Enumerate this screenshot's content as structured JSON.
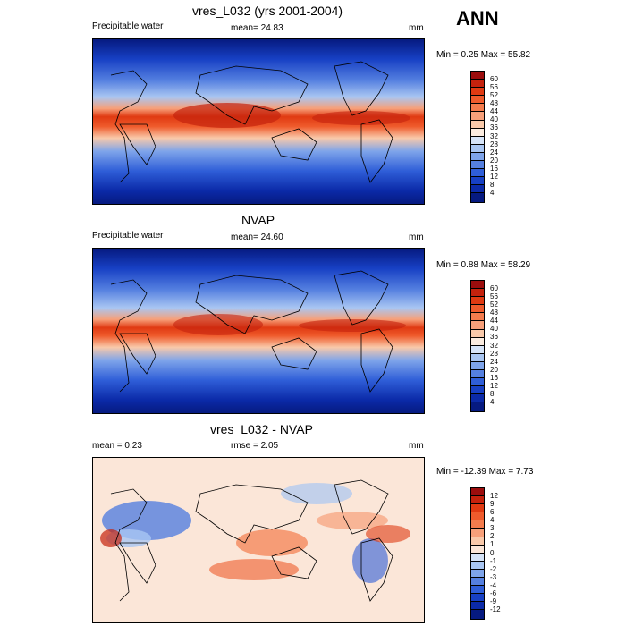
{
  "season": "ANN",
  "panels": [
    {
      "title": "vres_L032 (yrs 2001-2004)",
      "left_label": "Precipitable water",
      "center_label": "mean=  24.83",
      "units": "mm",
      "stats": "Min =   0.25 Max =  55.82"
    },
    {
      "title": "NVAP",
      "left_label": "Precipitable water",
      "center_label": "mean=  24.60",
      "units": "mm",
      "stats": "Min =   0.88 Max =  58.29"
    },
    {
      "title": "vres_L032 - NVAP",
      "left_label": "mean =    0.23",
      "center_label": "rmse =    2.05",
      "units": "mm",
      "stats": "Min = -12.39 Max =   7.73"
    }
  ],
  "colorbars": {
    "absolute": {
      "labels": [
        "60",
        "56",
        "52",
        "48",
        "44",
        "40",
        "36",
        "32",
        "28",
        "24",
        "20",
        "16",
        "12",
        "8",
        "4"
      ],
      "colors": [
        "#9c0d0d",
        "#c5220d",
        "#e03a12",
        "#ef5b2c",
        "#f47c4d",
        "#f7a07a",
        "#f9c9aa",
        "#fbece0",
        "#d6e4f8",
        "#a9c6f2",
        "#7ea4ea",
        "#5580e0",
        "#2f5ed8",
        "#1740c4",
        "#0b2aa8",
        "#061a80"
      ]
    },
    "difference": {
      "labels": [
        "12",
        "9",
        "6",
        "4",
        "3",
        "2",
        "1",
        "0",
        "-1",
        "-2",
        "-3",
        "-4",
        "-6",
        "-9",
        "-12"
      ],
      "colors": [
        "#9c0d0d",
        "#c5220d",
        "#e03a12",
        "#ef5b2c",
        "#f47c4d",
        "#f7a07a",
        "#f9c9aa",
        "#fbe6d8",
        "#d6e4f8",
        "#a9c6f2",
        "#7ea4ea",
        "#5580e0",
        "#2f5ed8",
        "#1740c4",
        "#0b2aa8",
        "#061a80"
      ]
    }
  }
}
